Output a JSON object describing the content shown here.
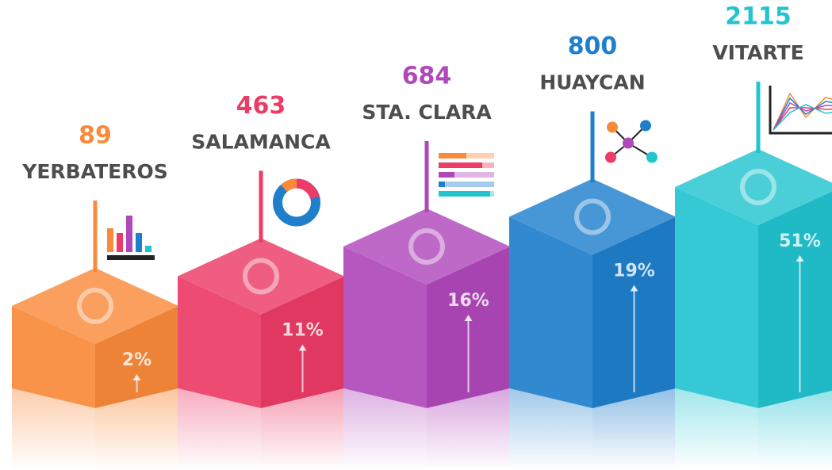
{
  "chart_data": {
    "type": "bar",
    "categories": [
      "YERBATEROS",
      "SALAMANCA",
      "STA. CLARA",
      "HUAYCAN",
      "VITARTE"
    ],
    "values": [
      89,
      463,
      684,
      800,
      2115
    ],
    "shares": {
      "values": [
        2,
        11,
        16,
        19,
        51
      ],
      "value_labels": [
        "2%",
        "11%",
        "16%",
        "19%",
        "51%"
      ]
    },
    "colors": [
      "#f98a3a",
      "#ec3b66",
      "#b048bb",
      "#1f7fcc",
      "#22c4d0"
    ]
  }
}
